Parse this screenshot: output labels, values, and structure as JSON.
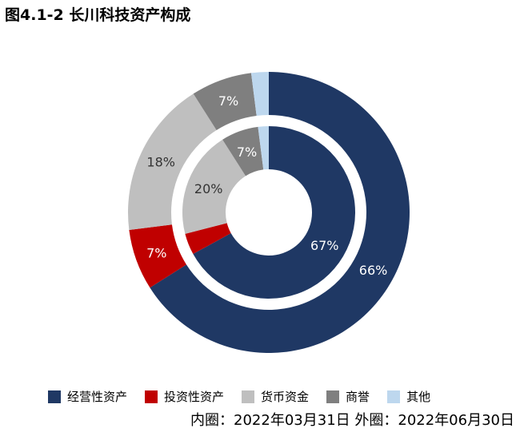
{
  "title": "图4.1-2 长川科技资产构成",
  "note": "内圈：2022年03月31日 外圈：2022年06月30日",
  "chart_data": {
    "type": "donut",
    "title": "图4.1-2 长川科技资产构成",
    "categories": [
      "经营性资产",
      "投资性资产",
      "货币资金",
      "商誉",
      "其他"
    ],
    "colors": [
      "#1f3864",
      "#c00000",
      "#bfbfbf",
      "#7f7f7f",
      "#bdd7ee"
    ],
    "series": [
      {
        "name": "内圈",
        "date": "2022年03月31日",
        "values": [
          67,
          4,
          20,
          7,
          2
        ],
        "labels": [
          "67%",
          "",
          "20%",
          "7%",
          ""
        ]
      },
      {
        "name": "外圈",
        "date": "2022年06月30日",
        "values": [
          66,
          7,
          18,
          7,
          2
        ],
        "labels": [
          "66%",
          "7%",
          "18%",
          "7%",
          ""
        ]
      }
    ],
    "legend_position": "bottom"
  }
}
